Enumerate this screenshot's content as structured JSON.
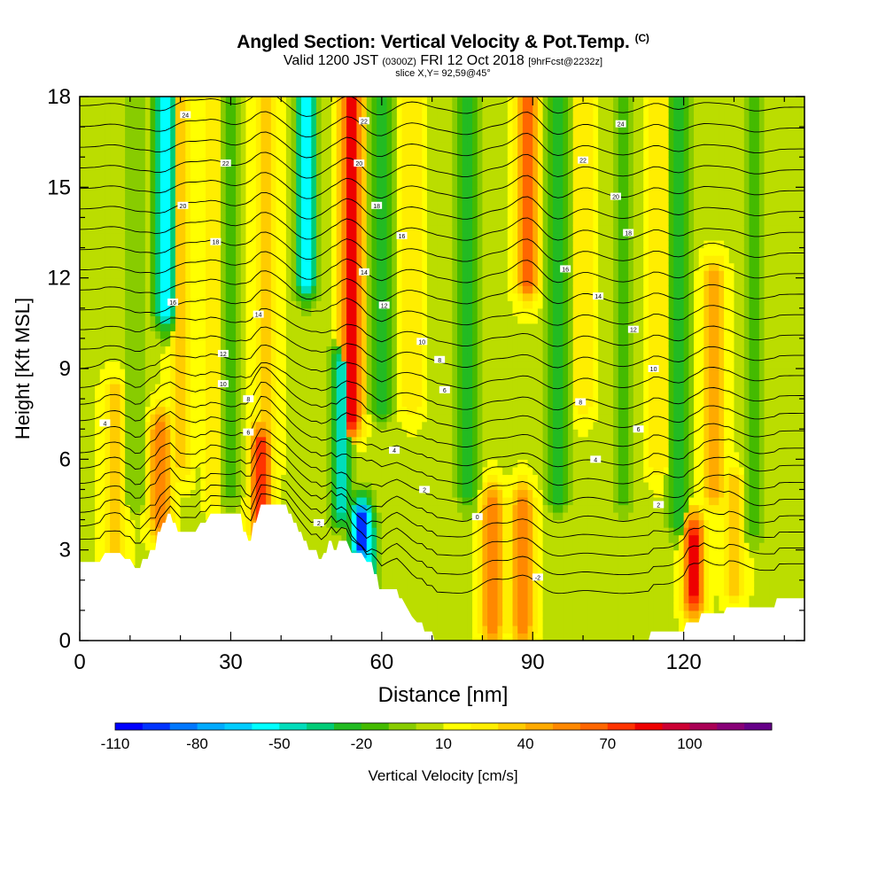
{
  "header": {
    "title": "Angled Section: Vertical Velocity & Pot.Temp.",
    "title_unit": "(C)",
    "valid_prefix": "Valid 1200 JST",
    "valid_utc": "(0300Z)",
    "valid_date": "FRI 12 Oct 2018",
    "forecast": "[9hrFcst@2232z]",
    "slice": "slice X,Y= 92,59@45°"
  },
  "chart_data": {
    "type": "heatmap",
    "xlabel": "Distance [nm]",
    "ylabel": "Height [Kft MSL]",
    "xlim": [
      0,
      144
    ],
    "ylim": [
      0,
      18
    ],
    "x_ticks": [
      0,
      30,
      60,
      90,
      120
    ],
    "y_ticks": [
      0,
      3,
      6,
      9,
      12,
      15,
      18
    ],
    "colorbar": {
      "label": "Vertical Velocity [cm/s]",
      "ticks": [
        -110,
        -80,
        -50,
        -20,
        10,
        40,
        70,
        100
      ],
      "bins": [
        -110,
        -100,
        -90,
        -80,
        -70,
        -60,
        -50,
        -40,
        -30,
        -20,
        -10,
        0,
        10,
        20,
        30,
        40,
        50,
        60,
        70,
        80,
        90,
        100,
        110,
        120
      ],
      "colors": [
        "#0000ff",
        "#0033ff",
        "#0077ff",
        "#00aaff",
        "#00ccff",
        "#00ffff",
        "#00ddbb",
        "#00cc77",
        "#22bb22",
        "#44bb00",
        "#88cc00",
        "#bbdd00",
        "#ffff00",
        "#ffee00",
        "#ffcc00",
        "#ffaa00",
        "#ff8800",
        "#ff6600",
        "#ff3300",
        "#ee0000",
        "#cc0033",
        "#aa0055",
        "#880077",
        "#660088"
      ]
    },
    "background_velocity": 8,
    "updraft_bands": [
      {
        "x": 7,
        "value": 40,
        "ybot": 3,
        "ytop": 8
      },
      {
        "x": 16,
        "value": 60,
        "ybot": 4,
        "ytop": 7
      },
      {
        "x": 20,
        "value": 35,
        "ybot": 6,
        "ytop": 18
      },
      {
        "x": 27,
        "value": 30,
        "ybot": 5,
        "ytop": 18
      },
      {
        "x": 36,
        "value": 75,
        "ybot": 4,
        "ytop": 6.5
      },
      {
        "x": 37,
        "value": 40,
        "ybot": 6,
        "ytop": 18
      },
      {
        "x": 54,
        "value": 90,
        "ybot": 7.5,
        "ytop": 18
      },
      {
        "x": 66,
        "value": 30,
        "ybot": 8,
        "ytop": 18
      },
      {
        "x": 82,
        "value": 60,
        "ybot": 0.5,
        "ytop": 4.5
      },
      {
        "x": 88,
        "value": 60,
        "ybot": 0.5,
        "ytop": 4.5
      },
      {
        "x": 89,
        "value": 70,
        "ybot": 12,
        "ytop": 18
      },
      {
        "x": 100,
        "value": 30,
        "ybot": 8,
        "ytop": 18
      },
      {
        "x": 115,
        "value": 30,
        "ybot": 6,
        "ytop": 18
      },
      {
        "x": 122,
        "value": 85,
        "ybot": 1.5,
        "ytop": 3.5
      },
      {
        "x": 126,
        "value": 45,
        "ybot": 5,
        "ytop": 12
      },
      {
        "x": 130,
        "value": 40,
        "ybot": 2,
        "ytop": 5
      }
    ],
    "downdraft_bands": [
      {
        "x": 11,
        "value": -10,
        "ybot": 5,
        "ytop": 18
      },
      {
        "x": 17,
        "value": -60,
        "ybot": 11,
        "ytop": 18
      },
      {
        "x": 30,
        "value": -15,
        "ybot": 5,
        "ytop": 18
      },
      {
        "x": 45,
        "value": -55,
        "ybot": 12,
        "ytop": 18
      },
      {
        "x": 52,
        "value": -50,
        "ybot": 4.5,
        "ytop": 9
      },
      {
        "x": 56,
        "value": -100,
        "ybot": 3.2,
        "ytop": 4
      },
      {
        "x": 57,
        "value": -55,
        "ybot": 1.8,
        "ytop": 3.5
      },
      {
        "x": 60,
        "value": -30,
        "ybot": 8,
        "ytop": 18
      },
      {
        "x": 77,
        "value": -25,
        "ybot": 5,
        "ytop": 18
      },
      {
        "x": 95,
        "value": -30,
        "ybot": 5,
        "ytop": 18
      },
      {
        "x": 108,
        "value": -20,
        "ybot": 5,
        "ytop": 18
      },
      {
        "x": 119,
        "value": -25,
        "ybot": 4,
        "ytop": 18
      },
      {
        "x": 134,
        "value": -20,
        "ybot": 4,
        "ytop": 18
      }
    ],
    "terrain": [
      [
        0,
        2.6
      ],
      [
        4,
        2.6
      ],
      [
        5,
        2.9
      ],
      [
        8,
        2.9
      ],
      [
        9,
        2.7
      ],
      [
        10,
        2.7
      ],
      [
        11,
        2.4
      ],
      [
        12,
        2.4
      ],
      [
        12.5,
        2.7
      ],
      [
        13.5,
        2.7
      ],
      [
        14,
        3.0
      ],
      [
        15,
        3.0
      ],
      [
        15.5,
        3.6
      ],
      [
        16,
        3.6
      ],
      [
        16.5,
        3.9
      ],
      [
        17,
        3.9
      ],
      [
        17.5,
        4.2
      ],
      [
        18,
        4.2
      ],
      [
        18.5,
        3.9
      ],
      [
        19,
        3.9
      ],
      [
        19.5,
        3.6
      ],
      [
        23,
        3.6
      ],
      [
        24,
        3.9
      ],
      [
        25,
        3.9
      ],
      [
        26,
        4.2
      ],
      [
        32,
        4.2
      ],
      [
        32.5,
        3.6
      ],
      [
        33,
        3.6
      ],
      [
        33.5,
        3.3
      ],
      [
        34,
        3.3
      ],
      [
        34.5,
        3.9
      ],
      [
        35,
        3.9
      ],
      [
        36,
        4.5
      ],
      [
        41,
        4.5
      ],
      [
        41.5,
        4.2
      ],
      [
        42,
        4.2
      ],
      [
        42.5,
        3.9
      ],
      [
        43,
        3.9
      ],
      [
        43.5,
        3.6
      ],
      [
        44,
        3.6
      ],
      [
        44.5,
        3.3
      ],
      [
        45,
        3.3
      ],
      [
        45.5,
        3.0
      ],
      [
        47,
        3.0
      ],
      [
        47.5,
        2.7
      ],
      [
        48,
        2.7
      ],
      [
        48.5,
        2.9
      ],
      [
        49,
        2.9
      ],
      [
        49.5,
        3.3
      ],
      [
        50,
        3.3
      ],
      [
        50.5,
        3.0
      ],
      [
        51,
        3.0
      ],
      [
        51.5,
        3.3
      ],
      [
        53,
        3.3
      ],
      [
        54,
        2.9
      ],
      [
        56,
        2.9
      ],
      [
        57,
        2.6
      ],
      [
        58,
        2.6
      ],
      [
        58.5,
        2.2
      ],
      [
        59,
        2.2
      ],
      [
        59.5,
        1.7
      ],
      [
        63,
        1.7
      ],
      [
        63.5,
        1.4
      ],
      [
        64,
        1.4
      ],
      [
        65,
        1.1
      ],
      [
        66,
        0.8
      ],
      [
        67,
        0.6
      ],
      [
        68,
        0.6
      ],
      [
        68.5,
        0.3
      ],
      [
        70,
        0.3
      ],
      [
        70.5,
        0.0
      ],
      [
        113,
        0.0
      ],
      [
        113.5,
        0.3
      ],
      [
        120,
        0.3
      ],
      [
        120.5,
        0.6
      ],
      [
        123,
        0.6
      ],
      [
        123.5,
        0.9
      ],
      [
        128,
        0.9
      ],
      [
        128.5,
        1.1
      ],
      [
        129,
        1.1
      ],
      [
        129.5,
        1.1
      ],
      [
        138,
        1.1
      ],
      [
        138.5,
        1.4
      ],
      [
        144,
        1.4
      ]
    ],
    "isentrope_labels": [
      {
        "text": "24",
        "x": 21,
        "y": 17.4
      },
      {
        "text": "22",
        "x": 29,
        "y": 15.8
      },
      {
        "text": "20",
        "x": 20.5,
        "y": 14.4
      },
      {
        "text": "18",
        "x": 27,
        "y": 13.2
      },
      {
        "text": "16",
        "x": 18.5,
        "y": 11.2
      },
      {
        "text": "14",
        "x": 35.5,
        "y": 10.8
      },
      {
        "text": "12",
        "x": 28.5,
        "y": 9.5
      },
      {
        "text": "10",
        "x": 28.5,
        "y": 8.5
      },
      {
        "text": "8",
        "x": 33.5,
        "y": 8.0
      },
      {
        "text": "6",
        "x": 33.5,
        "y": 6.9
      },
      {
        "text": "4",
        "x": 5,
        "y": 7.2
      },
      {
        "text": "2",
        "x": 47.5,
        "y": 3.9
      },
      {
        "text": "22",
        "x": 56.5,
        "y": 17.2
      },
      {
        "text": "20",
        "x": 55.5,
        "y": 15.8
      },
      {
        "text": "18",
        "x": 59,
        "y": 14.4
      },
      {
        "text": "16",
        "x": 64,
        "y": 13.4
      },
      {
        "text": "14",
        "x": 56.5,
        "y": 12.2
      },
      {
        "text": "12",
        "x": 60.5,
        "y": 11.1
      },
      {
        "text": "10",
        "x": 68,
        "y": 9.9
      },
      {
        "text": "8",
        "x": 71.5,
        "y": 9.3
      },
      {
        "text": "6",
        "x": 72.5,
        "y": 8.3
      },
      {
        "text": "4",
        "x": 62.5,
        "y": 6.3
      },
      {
        "text": "2",
        "x": 68.5,
        "y": 5.0
      },
      {
        "text": "0",
        "x": 79,
        "y": 4.1
      },
      {
        "text": "-2",
        "x": 91,
        "y": 2.1
      },
      {
        "text": "24",
        "x": 107.5,
        "y": 17.1
      },
      {
        "text": "22",
        "x": 100,
        "y": 15.9
      },
      {
        "text": "20",
        "x": 106.5,
        "y": 14.7
      },
      {
        "text": "18",
        "x": 109,
        "y": 13.5
      },
      {
        "text": "16",
        "x": 96.5,
        "y": 12.3
      },
      {
        "text": "14",
        "x": 103,
        "y": 11.4
      },
      {
        "text": "12",
        "x": 110,
        "y": 10.3
      },
      {
        "text": "10",
        "x": 114,
        "y": 9.0
      },
      {
        "text": "8",
        "x": 99.5,
        "y": 7.9
      },
      {
        "text": "6",
        "x": 111,
        "y": 7.0
      },
      {
        "text": "4",
        "x": 102.5,
        "y": 6.0
      },
      {
        "text": "2",
        "x": 115,
        "y": 4.5
      }
    ]
  }
}
